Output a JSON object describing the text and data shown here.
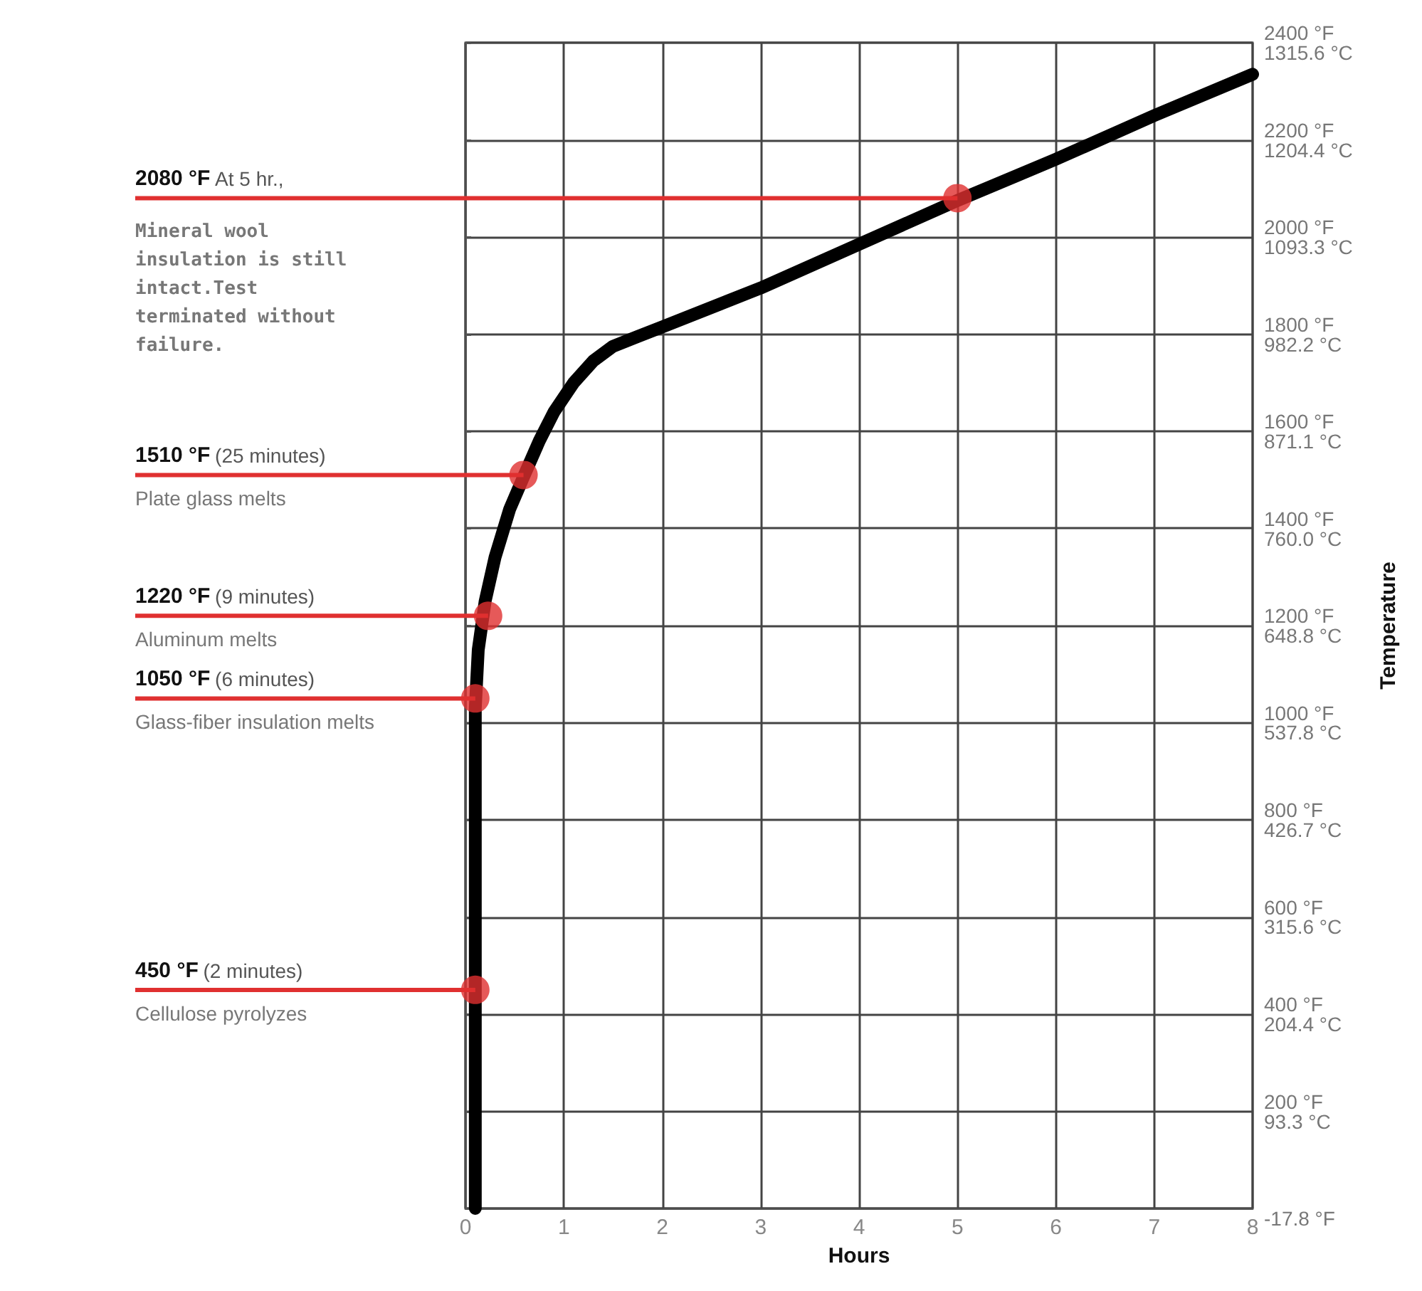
{
  "chart_data": {
    "type": "line",
    "xlabel": "Hours",
    "y2label": "Temperature",
    "xlim": [
      0,
      8
    ],
    "xticks": [
      0,
      1,
      2,
      3,
      4,
      5,
      6,
      7,
      8
    ],
    "ylim": [
      0,
      2400
    ],
    "yticks": [
      {
        "value": 0,
        "label": null
      },
      {
        "value": 200,
        "label": "200 °F"
      },
      {
        "value": 400,
        "label": "400 °F"
      },
      {
        "value": 600,
        "label": "600 °F"
      },
      {
        "value": 800,
        "label": "800 °F"
      },
      {
        "value": 1000,
        "label": "1000 °F"
      },
      {
        "value": 1200,
        "label": "1200 °F"
      },
      {
        "value": 1400,
        "label": "1400 °F"
      },
      {
        "value": 1600,
        "label": "1600 °F"
      },
      {
        "value": 1800,
        "label": "1800 °F"
      },
      {
        "value": 2000,
        "label": "2000 °F"
      },
      {
        "value": 2200,
        "label": "2200 °F"
      },
      {
        "value": 2400,
        "label": "2400 °F"
      }
    ],
    "y2lim": [
      -17.8,
      1315.6
    ],
    "y2ticks": [
      {
        "value": -17.8,
        "label": "-17.8 °F"
      },
      {
        "value": 93.3,
        "label": "93.3 °C"
      },
      {
        "value": 204.4,
        "label": "204.4 °C"
      },
      {
        "value": 315.6,
        "label": "315.6 °C"
      },
      {
        "value": 426.7,
        "label": "426.7 °C"
      },
      {
        "value": 537.8,
        "label": "537.8 °C"
      },
      {
        "value": 648.8,
        "label": "648.8 °C"
      },
      {
        "value": 760.0,
        "label": "760.0 °C"
      },
      {
        "value": 871.1,
        "label": "871.1 °C"
      },
      {
        "value": 982.2,
        "label": "982.2 °C"
      },
      {
        "value": 1093.3,
        "label": "1093.3 °C"
      },
      {
        "value": 1204.4,
        "label": "1204.4 °C"
      },
      {
        "value": 1315.6,
        "label": "1315.6 °C"
      }
    ],
    "grid": true,
    "series": [
      {
        "color": "#000000",
        "marker": "none",
        "x": [
          0.1,
          0.1,
          0.13,
          0.2,
          0.3,
          0.45,
          0.59,
          0.75,
          0.9,
          1.1,
          1.3,
          1.5,
          1.75,
          2,
          3,
          4,
          5,
          6,
          7,
          8
        ],
        "values": [
          0,
          1030,
          1150,
          1250,
          1340,
          1440,
          1506,
          1580,
          1640,
          1700,
          1745,
          1775,
          1795,
          1815,
          1895,
          1985,
          2075,
          2160,
          2250,
          2335
        ]
      },
      {
        "type": "scatter",
        "color": "#e03030",
        "marker": "circle",
        "x": [
          0.1,
          0.1,
          0.23,
          0.59,
          5
        ],
        "values": [
          450,
          1050,
          1220,
          1510,
          2080
        ]
      }
    ],
    "annotations": [
      {
        "text": "2080 °F At 5 hr.,",
        "x": 5,
        "y": 2080
      },
      "Mineral wool insulation is still intact.Test terminated without failure.",
      {
        "text": "1510 °F (25 minutes)",
        "x": 0.59,
        "y": 1510
      },
      "Plate glass melts",
      {
        "text": "1220 °F (9 minutes)",
        "x": 0.23,
        "y": 1220
      },
      "Aluminum melts",
      {
        "text": "1050 °F (6 minutes)",
        "x": 0.1,
        "y": 1050
      },
      "Glass-fiber insulation melts",
      {
        "text": "450 °F (2 minutes)",
        "x": 0.1,
        "y": 450
      },
      "Cellulose pyrolyzes"
    ]
  }
}
